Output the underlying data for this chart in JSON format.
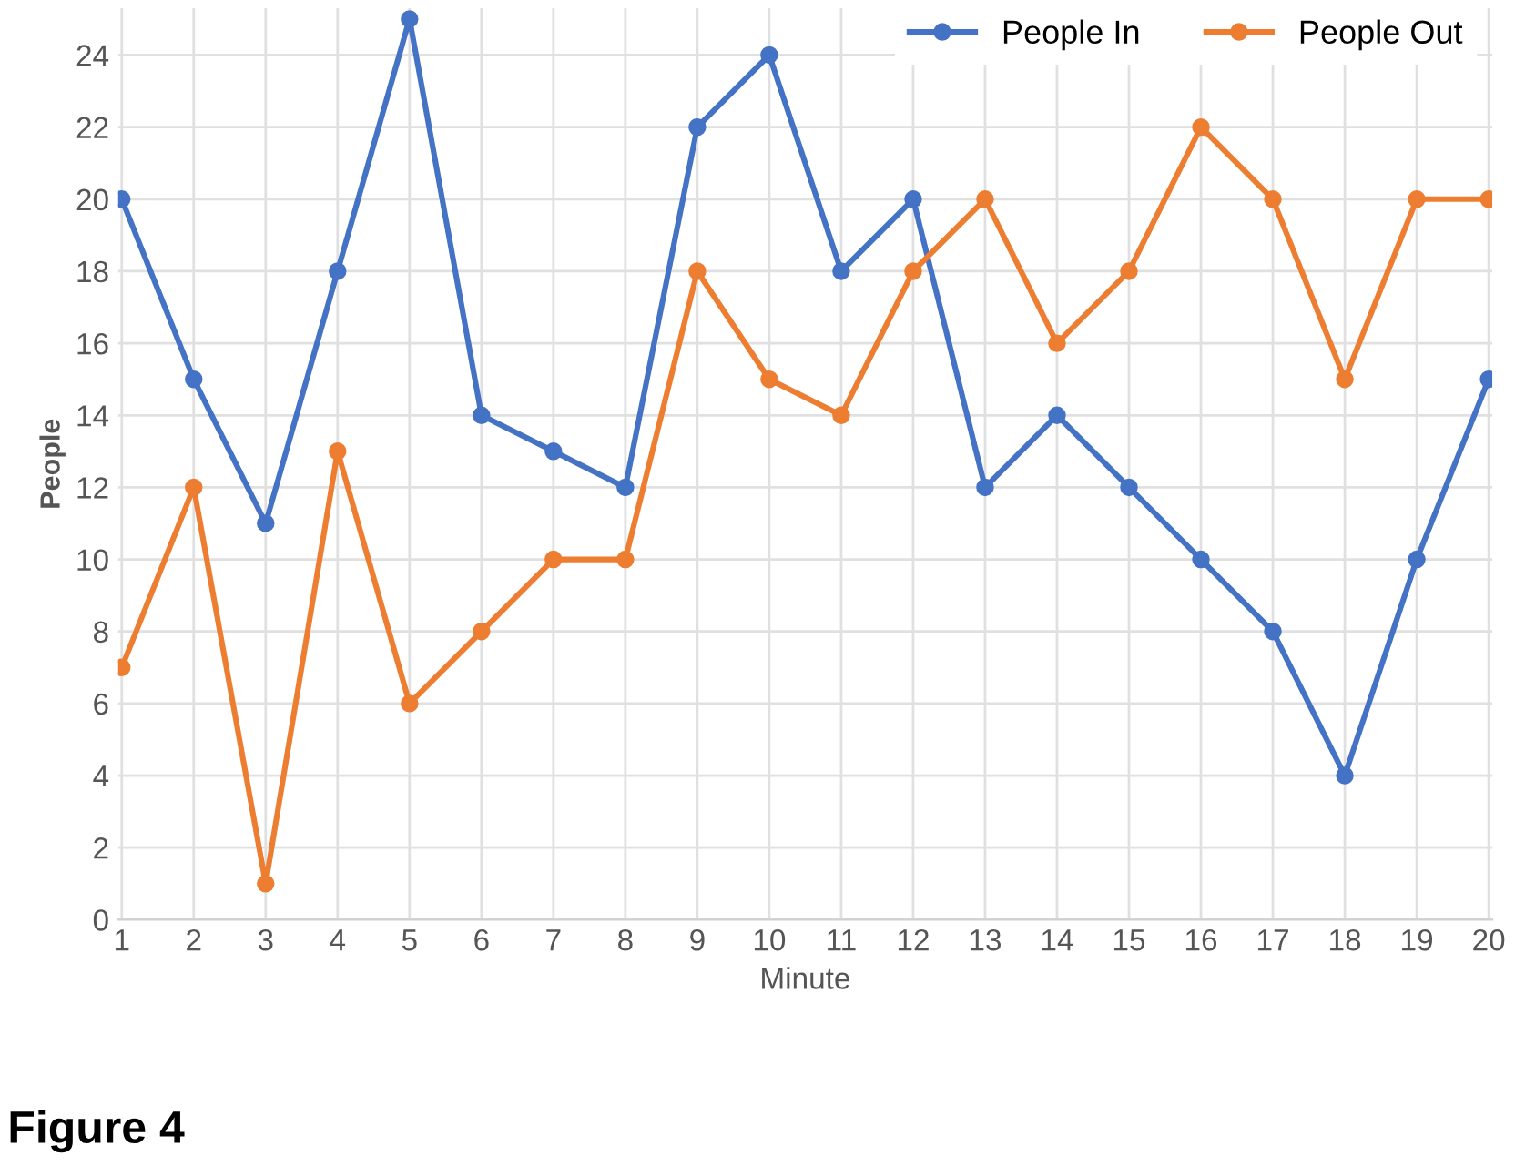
{
  "chart_data": {
    "type": "line",
    "xlabel": "Minute",
    "ylabel": "People",
    "categories": [
      "1",
      "2",
      "3",
      "4",
      "5",
      "6",
      "7",
      "8",
      "9",
      "10",
      "11",
      "12",
      "13",
      "14",
      "15",
      "16",
      "17",
      "18",
      "19",
      "20"
    ],
    "series": [
      {
        "name": "People In",
        "color": "#4472c4",
        "values": [
          20,
          15,
          11,
          18,
          25,
          14,
          13,
          12,
          22,
          24,
          18,
          20,
          12,
          14,
          12,
          10,
          8,
          4,
          10,
          15
        ]
      },
      {
        "name": "People Out",
        "color": "#ed7d31",
        "values": [
          7,
          12,
          1,
          13,
          6,
          8,
          10,
          10,
          18,
          15,
          14,
          18,
          20,
          16,
          18,
          22,
          20,
          15,
          20,
          20
        ]
      }
    ],
    "ylim": [
      0,
      25.3
    ],
    "yticks": [
      0,
      2,
      4,
      6,
      8,
      10,
      12,
      14,
      16,
      18,
      20,
      22,
      24
    ],
    "grid": true,
    "legend": "top right",
    "marker": "circle",
    "line_style": "solid",
    "annotations": [
      "Figure 4"
    ]
  }
}
